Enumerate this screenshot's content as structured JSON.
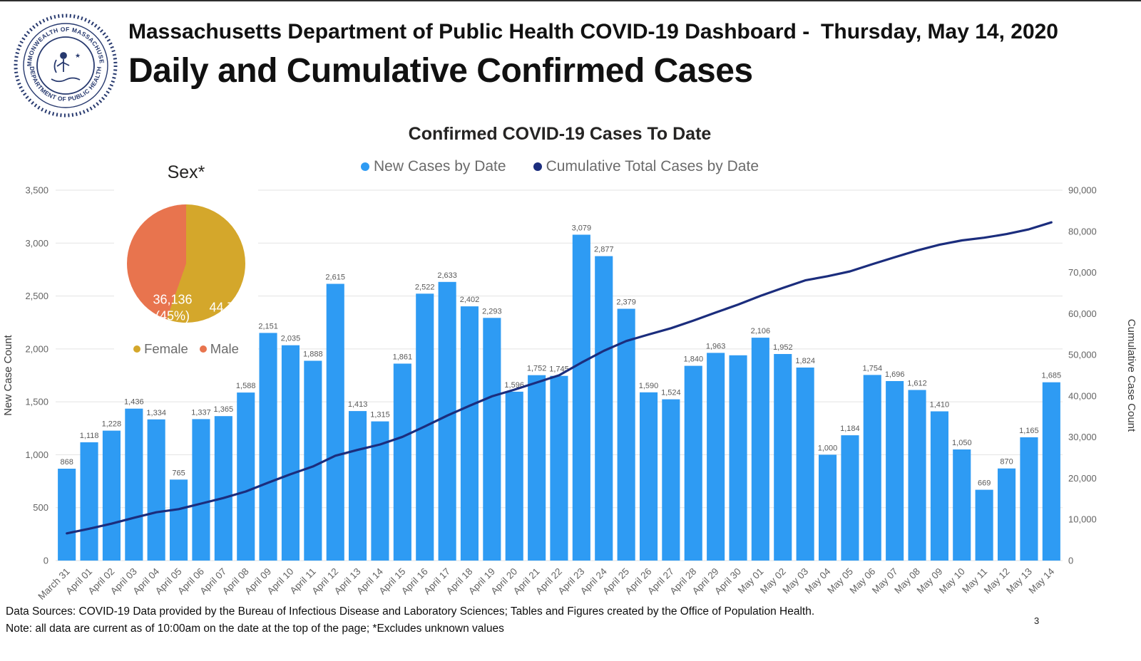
{
  "header": {
    "title": "Massachusetts Department of Public Health COVID-19 Dashboard -",
    "date": "Thursday, May 14, 2020",
    "subtitle": "Daily and Cumulative Confirmed Cases",
    "logo_ring_top": "COMMONWEALTH OF MASSACHUSETTS",
    "logo_ring_bottom": "DEPARTMENT OF PUBLIC HEALTH"
  },
  "footer": {
    "line1": "Data Sources: COVID-19 Data provided by the Bureau of Infectious Disease and Laboratory Sciences; Tables and Figures created by the Office of Population Health.",
    "line2": "Note: all data are current as of 10:00am on the date at the top of the page; *Excludes unknown values",
    "page_number": "3"
  },
  "chart_data": [
    {
      "id": "daily-and-cumulative-confirmed-cases",
      "type": "bar",
      "title": "Confirmed COVID-19 Cases To Date",
      "legend_position": "top",
      "grid": true,
      "x_tick_rotation": -45,
      "ylabel_left": "New Case Count",
      "ylabel_right": "Cumulative Case Count",
      "ylim_left": [
        0,
        3500
      ],
      "ylim_right": [
        0,
        90000
      ],
      "yticks_left": [
        "0",
        "500",
        "1,000",
        "1,500",
        "2,000",
        "2,500",
        "3,000",
        "3,500"
      ],
      "yticks_right": [
        "0",
        "10,000",
        "20,000",
        "30,000",
        "40,000",
        "50,000",
        "60,000",
        "70,000",
        "80,000",
        "90,000"
      ],
      "categories": [
        "March 31",
        "April 01",
        "April 02",
        "April 03",
        "April 04",
        "April 05",
        "April 06",
        "April 07",
        "April 08",
        "April 09",
        "April 10",
        "April 11",
        "April 12",
        "April 13",
        "April 14",
        "April 15",
        "April 16",
        "April 17",
        "April 18",
        "April 19",
        "April 20",
        "April 21",
        "April 22",
        "April 23",
        "April 24",
        "April 25",
        "April 26",
        "April 27",
        "April 28",
        "April 29",
        "April 30",
        "May 01",
        "May 02",
        "May 03",
        "May 04",
        "May 05",
        "May 06",
        "May 07",
        "May 08",
        "May 09",
        "May 10",
        "May 11",
        "May 12",
        "May 13",
        "May 14"
      ],
      "series": [
        {
          "name": "New Cases by Date",
          "type": "bar",
          "axis": "left",
          "color": "#2e9bf3",
          "values": [
            868,
            1118,
            1228,
            1436,
            1334,
            765,
            1337,
            1365,
            1588,
            2151,
            2035,
            1888,
            2615,
            1413,
            1315,
            1861,
            2522,
            2633,
            2402,
            2293,
            1596,
            1752,
            1745,
            3079,
            2877,
            2379,
            1590,
            1524,
            1840,
            1963,
            1940,
            2106,
            1952,
            1824,
            1000,
            1184,
            1754,
            1696,
            1612,
            1410,
            1050,
            669,
            870,
            1165,
            1685
          ],
          "labels": [
            "868",
            "1,118",
            "1,228",
            "1,436",
            "1,334",
            "765",
            "1,337",
            "1,365",
            "1,588",
            "2,151",
            "2,035",
            "1,888",
            "2,615",
            "1,413",
            "1,315",
            "1,861",
            "2,522",
            "2,633",
            "2,402",
            "2,293",
            "1,596",
            "1,752",
            "1,745",
            "3,079",
            "2,877",
            "2,379",
            "1,590",
            "1,524",
            "1,840",
            "1,963",
            "",
            "2,106",
            "1,952",
            "1,824",
            "1,000",
            "1,184",
            "1,754",
            "1,696",
            "1,612",
            "1,410",
            "1,050",
            "669",
            "870",
            "1,165",
            "1,685"
          ]
        },
        {
          "name": "Cumulative Total Cases by Date",
          "type": "line",
          "axis": "right",
          "color": "#1b2d7d",
          "values": [
            6620,
            7738,
            8966,
            10402,
            11736,
            12501,
            13838,
            15203,
            16791,
            18942,
            20977,
            22865,
            25480,
            26893,
            28208,
            30069,
            32591,
            35224,
            37626,
            39919,
            41515,
            43267,
            45012,
            48091,
            50968,
            53347,
            54937,
            56461,
            58301,
            60264,
            62204,
            64310,
            66262,
            68086,
            69086,
            70270,
            72024,
            73720,
            75332,
            76742,
            77792,
            78461,
            79331,
            80496,
            82181
          ]
        }
      ]
    },
    {
      "id": "sex-breakdown",
      "type": "pie",
      "title": "Sex*",
      "legend_position": "bottom",
      "slices": [
        {
          "name": "Female",
          "value": 44782,
          "value_label": "44,782",
          "pct_label": "(55%)",
          "color": "#d4a72b"
        },
        {
          "name": "Male",
          "value": 36136,
          "value_label": "36,136",
          "pct_label": "(45%)",
          "color": "#e8744e"
        }
      ]
    }
  ]
}
